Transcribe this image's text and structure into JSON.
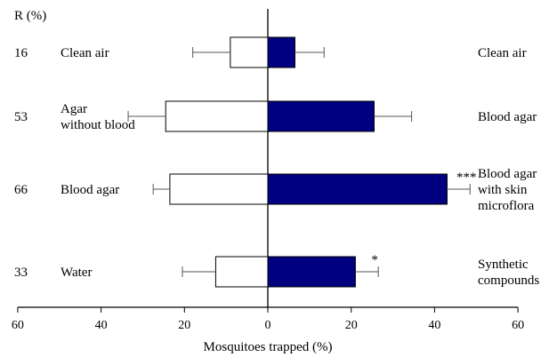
{
  "chart_data": {
    "type": "bar",
    "orientation": "horizontal-diverging",
    "xlabel": "Mosquitoes trapped (%)",
    "r_header": "R (%)",
    "xticks": [
      "60",
      "40",
      "20",
      "0",
      "20",
      "40",
      "60"
    ],
    "xlim": [
      -60,
      60
    ],
    "colors": {
      "left": "#ffffff",
      "right": "#000080",
      "edge": "#000000"
    },
    "rows": [
      {
        "r": "16",
        "left_label": [
          "Clean air"
        ],
        "right_label": [
          "Clean air"
        ],
        "left": 9,
        "left_err": 9,
        "right": 6.5,
        "right_err": 7,
        "sig": ""
      },
      {
        "r": "53",
        "left_label": [
          "Agar",
          "without blood"
        ],
        "right_label": [
          "Blood agar"
        ],
        "left": 24.5,
        "left_err": 9,
        "right": 25.5,
        "right_err": 9,
        "sig": ""
      },
      {
        "r": "66",
        "left_label": [
          "Blood agar"
        ],
        "right_label": [
          "Blood agar",
          "with skin",
          "microflora"
        ],
        "left": 23.5,
        "left_err": 4,
        "right": 43,
        "right_err": 5.5,
        "sig": "***"
      },
      {
        "r": "33",
        "left_label": [
          "Water"
        ],
        "right_label": [
          "Synthetic",
          "compounds"
        ],
        "left": 12.5,
        "left_err": 8,
        "right": 21,
        "right_err": 5.5,
        "sig": "*"
      }
    ]
  }
}
